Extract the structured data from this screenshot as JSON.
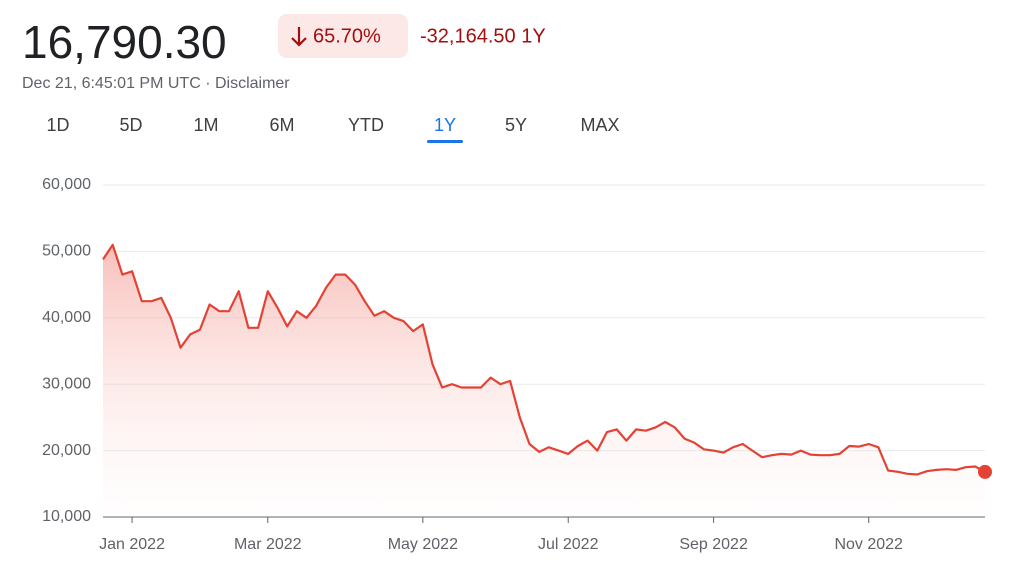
{
  "header": {
    "price": "16,790.30",
    "change_percent": "65.70%",
    "change": "-32,164.50 1Y",
    "timestamp": "Dec 21, 6:45:01 PM UTC · Disclaimer",
    "ranges": [
      "1D",
      "5D",
      "1M",
      "6M",
      "YTD",
      "1Y",
      "5Y",
      "MAX"
    ],
    "selected_range": "1Y"
  },
  "chart_data": {
    "type": "line",
    "color": "#e34234",
    "grid": true,
    "categories": [
      null,
      null,
      null,
      "Jan 2022",
      null,
      null,
      null,
      null,
      null,
      null,
      null,
      null,
      null,
      null,
      null,
      null,
      null,
      "Mar 2022",
      null,
      null,
      null,
      null,
      null,
      null,
      null,
      null,
      null,
      null,
      null,
      null,
      null,
      null,
      null,
      "May 2022",
      null,
      null,
      null,
      null,
      null,
      null,
      null,
      null,
      null,
      null,
      null,
      null,
      null,
      null,
      "Jul 2022",
      null,
      null,
      null,
      null,
      null,
      null,
      null,
      null,
      null,
      null,
      null,
      null,
      null,
      null,
      "Sep 2022",
      null,
      null,
      null,
      null,
      null,
      null,
      null,
      null,
      null,
      null,
      null,
      null,
      null,
      null,
      null,
      "Nov 2022",
      null,
      null,
      null,
      null,
      null,
      null,
      null,
      null,
      null,
      null,
      null,
      null
    ],
    "values": [
      48800,
      51000,
      46500,
      47000,
      42500,
      42500,
      43000,
      40000,
      35500,
      37500,
      38200,
      42000,
      41000,
      41000,
      44000,
      38500,
      38500,
      44000,
      41500,
      38700,
      41000,
      40000,
      41800,
      44500,
      46500,
      46500,
      45000,
      42500,
      40300,
      41000,
      40000,
      39500,
      38000,
      39000,
      33000,
      29500,
      30000,
      29500,
      29500,
      29500,
      31000,
      30000,
      30500,
      25000,
      21000,
      19800,
      20500,
      20000,
      19500,
      20700,
      21500,
      20000,
      22800,
      23200,
      21500,
      23200,
      23000,
      23500,
      24300,
      23500,
      21800,
      21200,
      20200,
      20000,
      19700,
      20500,
      21000,
      20000,
      19000,
      19300,
      19500,
      19400,
      20000,
      19400,
      19300,
      19300,
      19500,
      20700,
      20600,
      21000,
      20500,
      17000,
      16800,
      16500,
      16400,
      16900,
      17100,
      17200,
      17100,
      17500,
      17600,
      16790.3
    ],
    "ylim": [
      10000,
      60000
    ],
    "yticks": [
      {
        "value": 10000,
        "label": "10,000"
      },
      {
        "value": 20000,
        "label": "20,000"
      },
      {
        "value": 30000,
        "label": "30,000"
      },
      {
        "value": 40000,
        "label": "40,000"
      },
      {
        "value": 50000,
        "label": "50,000"
      },
      {
        "value": 60000,
        "label": "60,000"
      }
    ]
  }
}
